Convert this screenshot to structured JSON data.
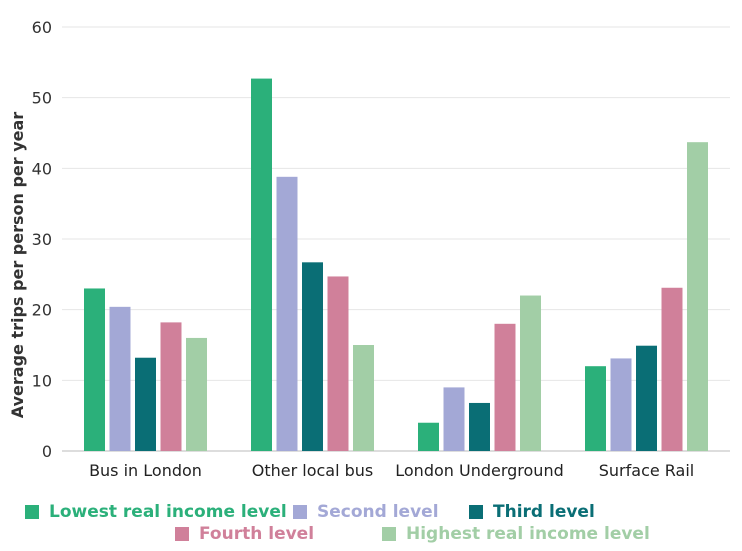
{
  "chart_data": {
    "type": "bar",
    "categories": [
      "Bus in London",
      "Other local bus",
      "London Underground",
      "Surface Rail"
    ],
    "series": [
      {
        "name": "Lowest real income level",
        "color": "#2bb07a",
        "values": [
          23,
          52.7,
          4,
          12
        ]
      },
      {
        "name": "Second level",
        "color": "#a3a8d6",
        "values": [
          20.4,
          38.8,
          9,
          13.1
        ]
      },
      {
        "name": "Third level",
        "color": "#0a6e75",
        "values": [
          13.2,
          26.7,
          6.8,
          14.9
        ]
      },
      {
        "name": "Fourth level",
        "color": "#d0809a",
        "values": [
          18.2,
          24.7,
          18,
          23.1
        ]
      },
      {
        "name": "Highest real income level",
        "color": "#a2cea6",
        "values": [
          16,
          15,
          22,
          43.7
        ]
      }
    ],
    "ylabel": "Average trips per person per year",
    "xlabel": "",
    "ylim": [
      0,
      60
    ],
    "yticks": [
      0,
      10,
      20,
      30,
      40,
      50,
      60
    ],
    "grid": true,
    "legend_position": "bottom"
  }
}
